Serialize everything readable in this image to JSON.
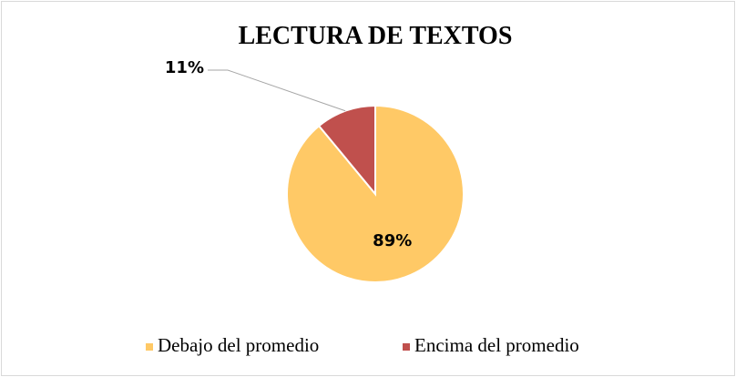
{
  "chart_data": {
    "type": "pie",
    "title": "LECTURA DE TEXTOS",
    "categories": [
      "Debajo del promedio",
      "Encima del promedio"
    ],
    "values": [
      89,
      11
    ],
    "value_labels": [
      "89%",
      "11%"
    ],
    "colors": [
      "#FFC966",
      "#C0504D"
    ],
    "legend": "bottom"
  }
}
